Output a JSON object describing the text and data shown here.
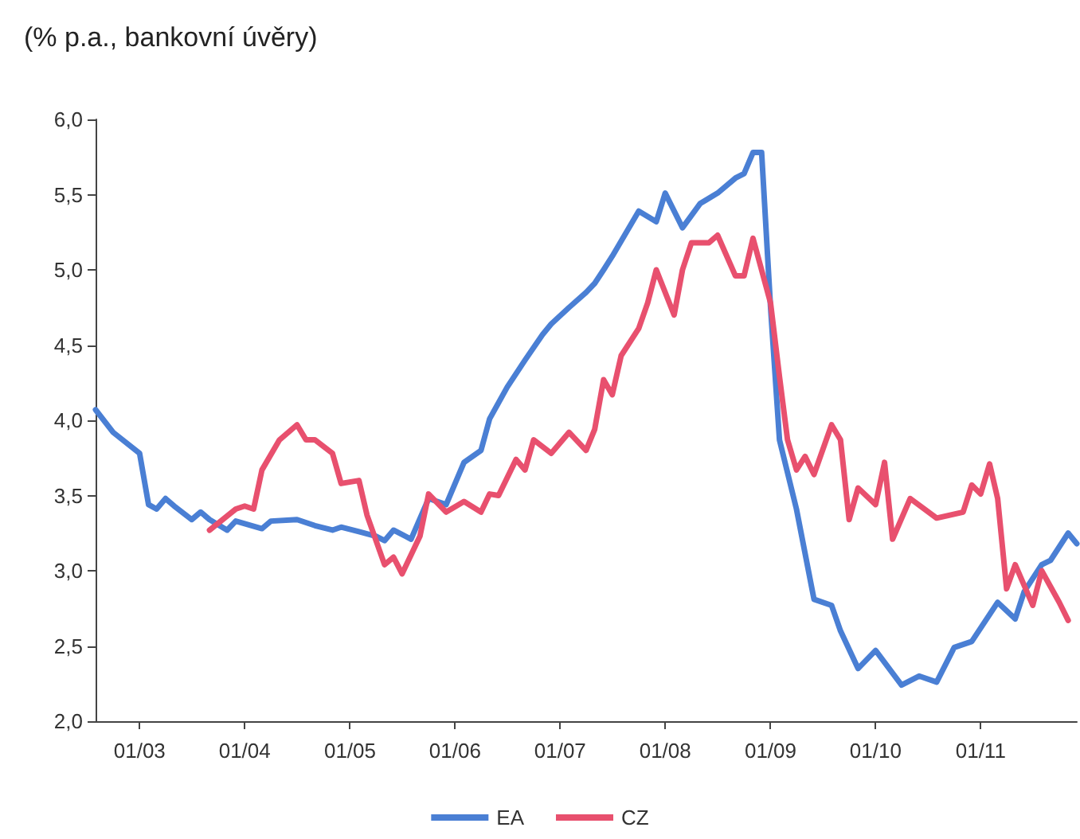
{
  "chart_data": {
    "type": "line",
    "title": "(% p.a., bankovní úvěry)",
    "xlim": [
      "2002-08",
      "2011-12"
    ],
    "xticks": [
      {
        "value": "2003-01",
        "label": "01/03"
      },
      {
        "value": "2004-01",
        "label": "01/04"
      },
      {
        "value": "2005-01",
        "label": "01/05"
      },
      {
        "value": "2006-01",
        "label": "01/06"
      },
      {
        "value": "2007-01",
        "label": "01/07"
      },
      {
        "value": "2008-01",
        "label": "01/08"
      },
      {
        "value": "2009-01",
        "label": "01/09"
      },
      {
        "value": "2010-01",
        "label": "01/10"
      },
      {
        "value": "2011-01",
        "label": "01/11"
      }
    ],
    "ylim": [
      2,
      6
    ],
    "yticks": [
      {
        "value": 2,
        "label": "2,0"
      },
      {
        "value": 2.5,
        "label": "2,5"
      },
      {
        "value": 3,
        "label": "3,0"
      },
      {
        "value": 3.5,
        "label": "3,5"
      },
      {
        "value": 4,
        "label": "4,0"
      },
      {
        "value": 4.5,
        "label": "4,5"
      },
      {
        "value": 5,
        "label": "5,0"
      },
      {
        "value": 5.5,
        "label": "5,5"
      },
      {
        "value": 6,
        "label": "6,0"
      }
    ],
    "grid": false,
    "legend": "bottom",
    "marker": "none",
    "line_style": "solid",
    "series": [
      {
        "name": "EA",
        "color": "#4a7fd4",
        "x": [
          "2002-08",
          "2002-10",
          "2003-01",
          "2003-02",
          "2003-03",
          "2003-04",
          "2003-05",
          "2003-07",
          "2003-08",
          "2003-09",
          "2003-11",
          "2003-12",
          "2004-03",
          "2004-04",
          "2004-07",
          "2004-09",
          "2004-11",
          "2004-12",
          "2005-02",
          "2005-04",
          "2005-05",
          "2005-06",
          "2005-08",
          "2005-10",
          "2005-12",
          "2006-02",
          "2006-04",
          "2006-05",
          "2006-07",
          "2006-09",
          "2006-11",
          "2006-12",
          "2007-02",
          "2007-04",
          "2007-05",
          "2007-06",
          "2007-07",
          "2007-10",
          "2007-12",
          "2008-01",
          "2008-03",
          "2008-05",
          "2008-07",
          "2008-09",
          "2008-10",
          "2008-11",
          "2008-12",
          "2009-01",
          "2009-02",
          "2009-04",
          "2009-06",
          "2009-08",
          "2009-09",
          "2009-11",
          "2010-01",
          "2010-04",
          "2010-06",
          "2010-08",
          "2010-10",
          "2010-12",
          "2011-03",
          "2011-05",
          "2011-06",
          "2011-08",
          "2011-09",
          "2011-11",
          "2011-12"
        ],
        "values": [
          4.07,
          3.92,
          3.78,
          3.44,
          3.41,
          3.48,
          3.43,
          3.34,
          3.39,
          3.34,
          3.27,
          3.33,
          3.28,
          3.33,
          3.34,
          3.3,
          3.27,
          3.29,
          3.26,
          3.23,
          3.2,
          3.27,
          3.21,
          3.48,
          3.44,
          3.72,
          3.8,
          4.01,
          4.22,
          4.4,
          4.57,
          4.64,
          4.75,
          4.85,
          4.91,
          5.0,
          5.09,
          5.39,
          5.32,
          5.51,
          5.28,
          5.44,
          5.51,
          5.61,
          5.64,
          5.78,
          5.78,
          4.75,
          3.87,
          3.41,
          2.81,
          2.77,
          2.6,
          2.35,
          2.47,
          2.24,
          2.3,
          2.26,
          2.49,
          2.53,
          2.79,
          2.68,
          2.86,
          3.04,
          3.07,
          3.25,
          3.18
        ]
      },
      {
        "name": "CZ",
        "color": "#e8506e",
        "x": [
          "2003-09",
          "2003-12",
          "2004-01",
          "2004-02",
          "2004-03",
          "2004-05",
          "2004-07",
          "2004-08",
          "2004-09",
          "2004-11",
          "2004-12",
          "2005-02",
          "2005-03",
          "2005-05",
          "2005-06",
          "2005-07",
          "2005-09",
          "2005-10",
          "2005-12",
          "2006-02",
          "2006-04",
          "2006-05",
          "2006-06",
          "2006-08",
          "2006-09",
          "2006-10",
          "2006-12",
          "2007-02",
          "2007-04",
          "2007-05",
          "2007-06",
          "2007-07",
          "2007-08",
          "2007-10",
          "2007-11",
          "2007-12",
          "2008-02",
          "2008-03",
          "2008-04",
          "2008-06",
          "2008-07",
          "2008-09",
          "2008-10",
          "2008-11",
          "2009-01",
          "2009-02",
          "2009-03",
          "2009-04",
          "2009-05",
          "2009-06",
          "2009-08",
          "2009-09",
          "2009-10",
          "2009-11",
          "2010-01",
          "2010-02",
          "2010-03",
          "2010-05",
          "2010-08",
          "2010-11",
          "2010-12",
          "2011-01",
          "2011-02",
          "2011-03",
          "2011-04",
          "2011-05",
          "2011-07",
          "2011-08",
          "2011-10",
          "2011-11"
        ],
        "values": [
          3.27,
          3.41,
          3.43,
          3.41,
          3.67,
          3.87,
          3.97,
          3.87,
          3.87,
          3.78,
          3.58,
          3.6,
          3.37,
          3.04,
          3.09,
          2.98,
          3.23,
          3.51,
          3.39,
          3.46,
          3.39,
          3.51,
          3.5,
          3.74,
          3.67,
          3.87,
          3.78,
          3.92,
          3.8,
          3.94,
          4.27,
          4.17,
          4.43,
          4.61,
          4.78,
          5.0,
          4.7,
          5.0,
          5.18,
          5.18,
          5.23,
          4.96,
          4.96,
          5.21,
          4.78,
          4.29,
          3.87,
          3.67,
          3.76,
          3.64,
          3.97,
          3.87,
          3.34,
          3.55,
          3.44,
          3.72,
          3.21,
          3.48,
          3.35,
          3.39,
          3.57,
          3.51,
          3.71,
          3.48,
          2.88,
          3.04,
          2.77,
          3.0,
          2.79,
          2.67
        ]
      }
    ]
  }
}
